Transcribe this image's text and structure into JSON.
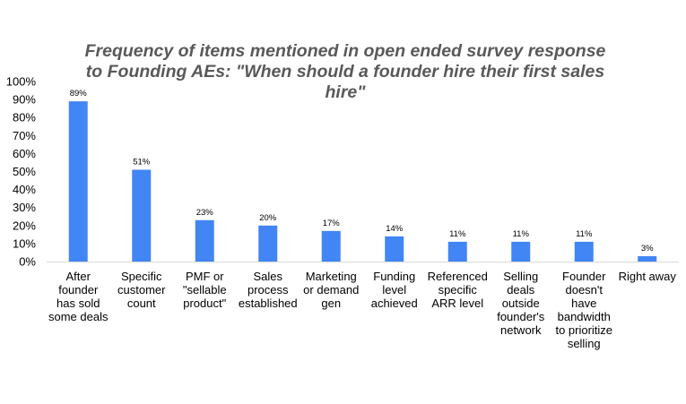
{
  "chart_data": {
    "type": "bar",
    "title_lines": [
      "Frequency of items mentioned in open ended survey response",
      "to Founding AEs: \"When should a founder hire their first sales",
      "hire\""
    ],
    "xlabel": "",
    "ylabel": "",
    "ylim": [
      0,
      100
    ],
    "y_ticks": [
      0,
      10,
      20,
      30,
      40,
      50,
      60,
      70,
      80,
      90,
      100
    ],
    "y_tick_labels": [
      "0%",
      "10%",
      "20%",
      "30%",
      "40%",
      "50%",
      "60%",
      "70%",
      "80%",
      "90%",
      "100%"
    ],
    "grid": false,
    "bar_color": "#4285F4",
    "categories": [
      [
        "After",
        "founder",
        "has sold",
        "some deals"
      ],
      [
        "Specific",
        "customer",
        "count"
      ],
      [
        "PMF or",
        "\"sellable",
        "product\""
      ],
      [
        "Sales",
        "process",
        "established"
      ],
      [
        "Marketing",
        "or demand",
        "gen"
      ],
      [
        "Funding",
        "level",
        "achieved"
      ],
      [
        "Referenced",
        "specific",
        "ARR level"
      ],
      [
        "Selling",
        "deals",
        "outside",
        "founder's",
        "network"
      ],
      [
        "Founder",
        "doesn't",
        "have",
        "bandwidth",
        "to prioritize",
        "selling"
      ],
      [
        "Right away"
      ]
    ],
    "values": [
      89,
      51,
      23,
      20,
      17,
      14,
      11,
      11,
      11,
      3
    ],
    "data_labels": [
      "89%",
      "51%",
      "23%",
      "20%",
      "17%",
      "14%",
      "11%",
      "11%",
      "11%",
      "3%"
    ]
  }
}
